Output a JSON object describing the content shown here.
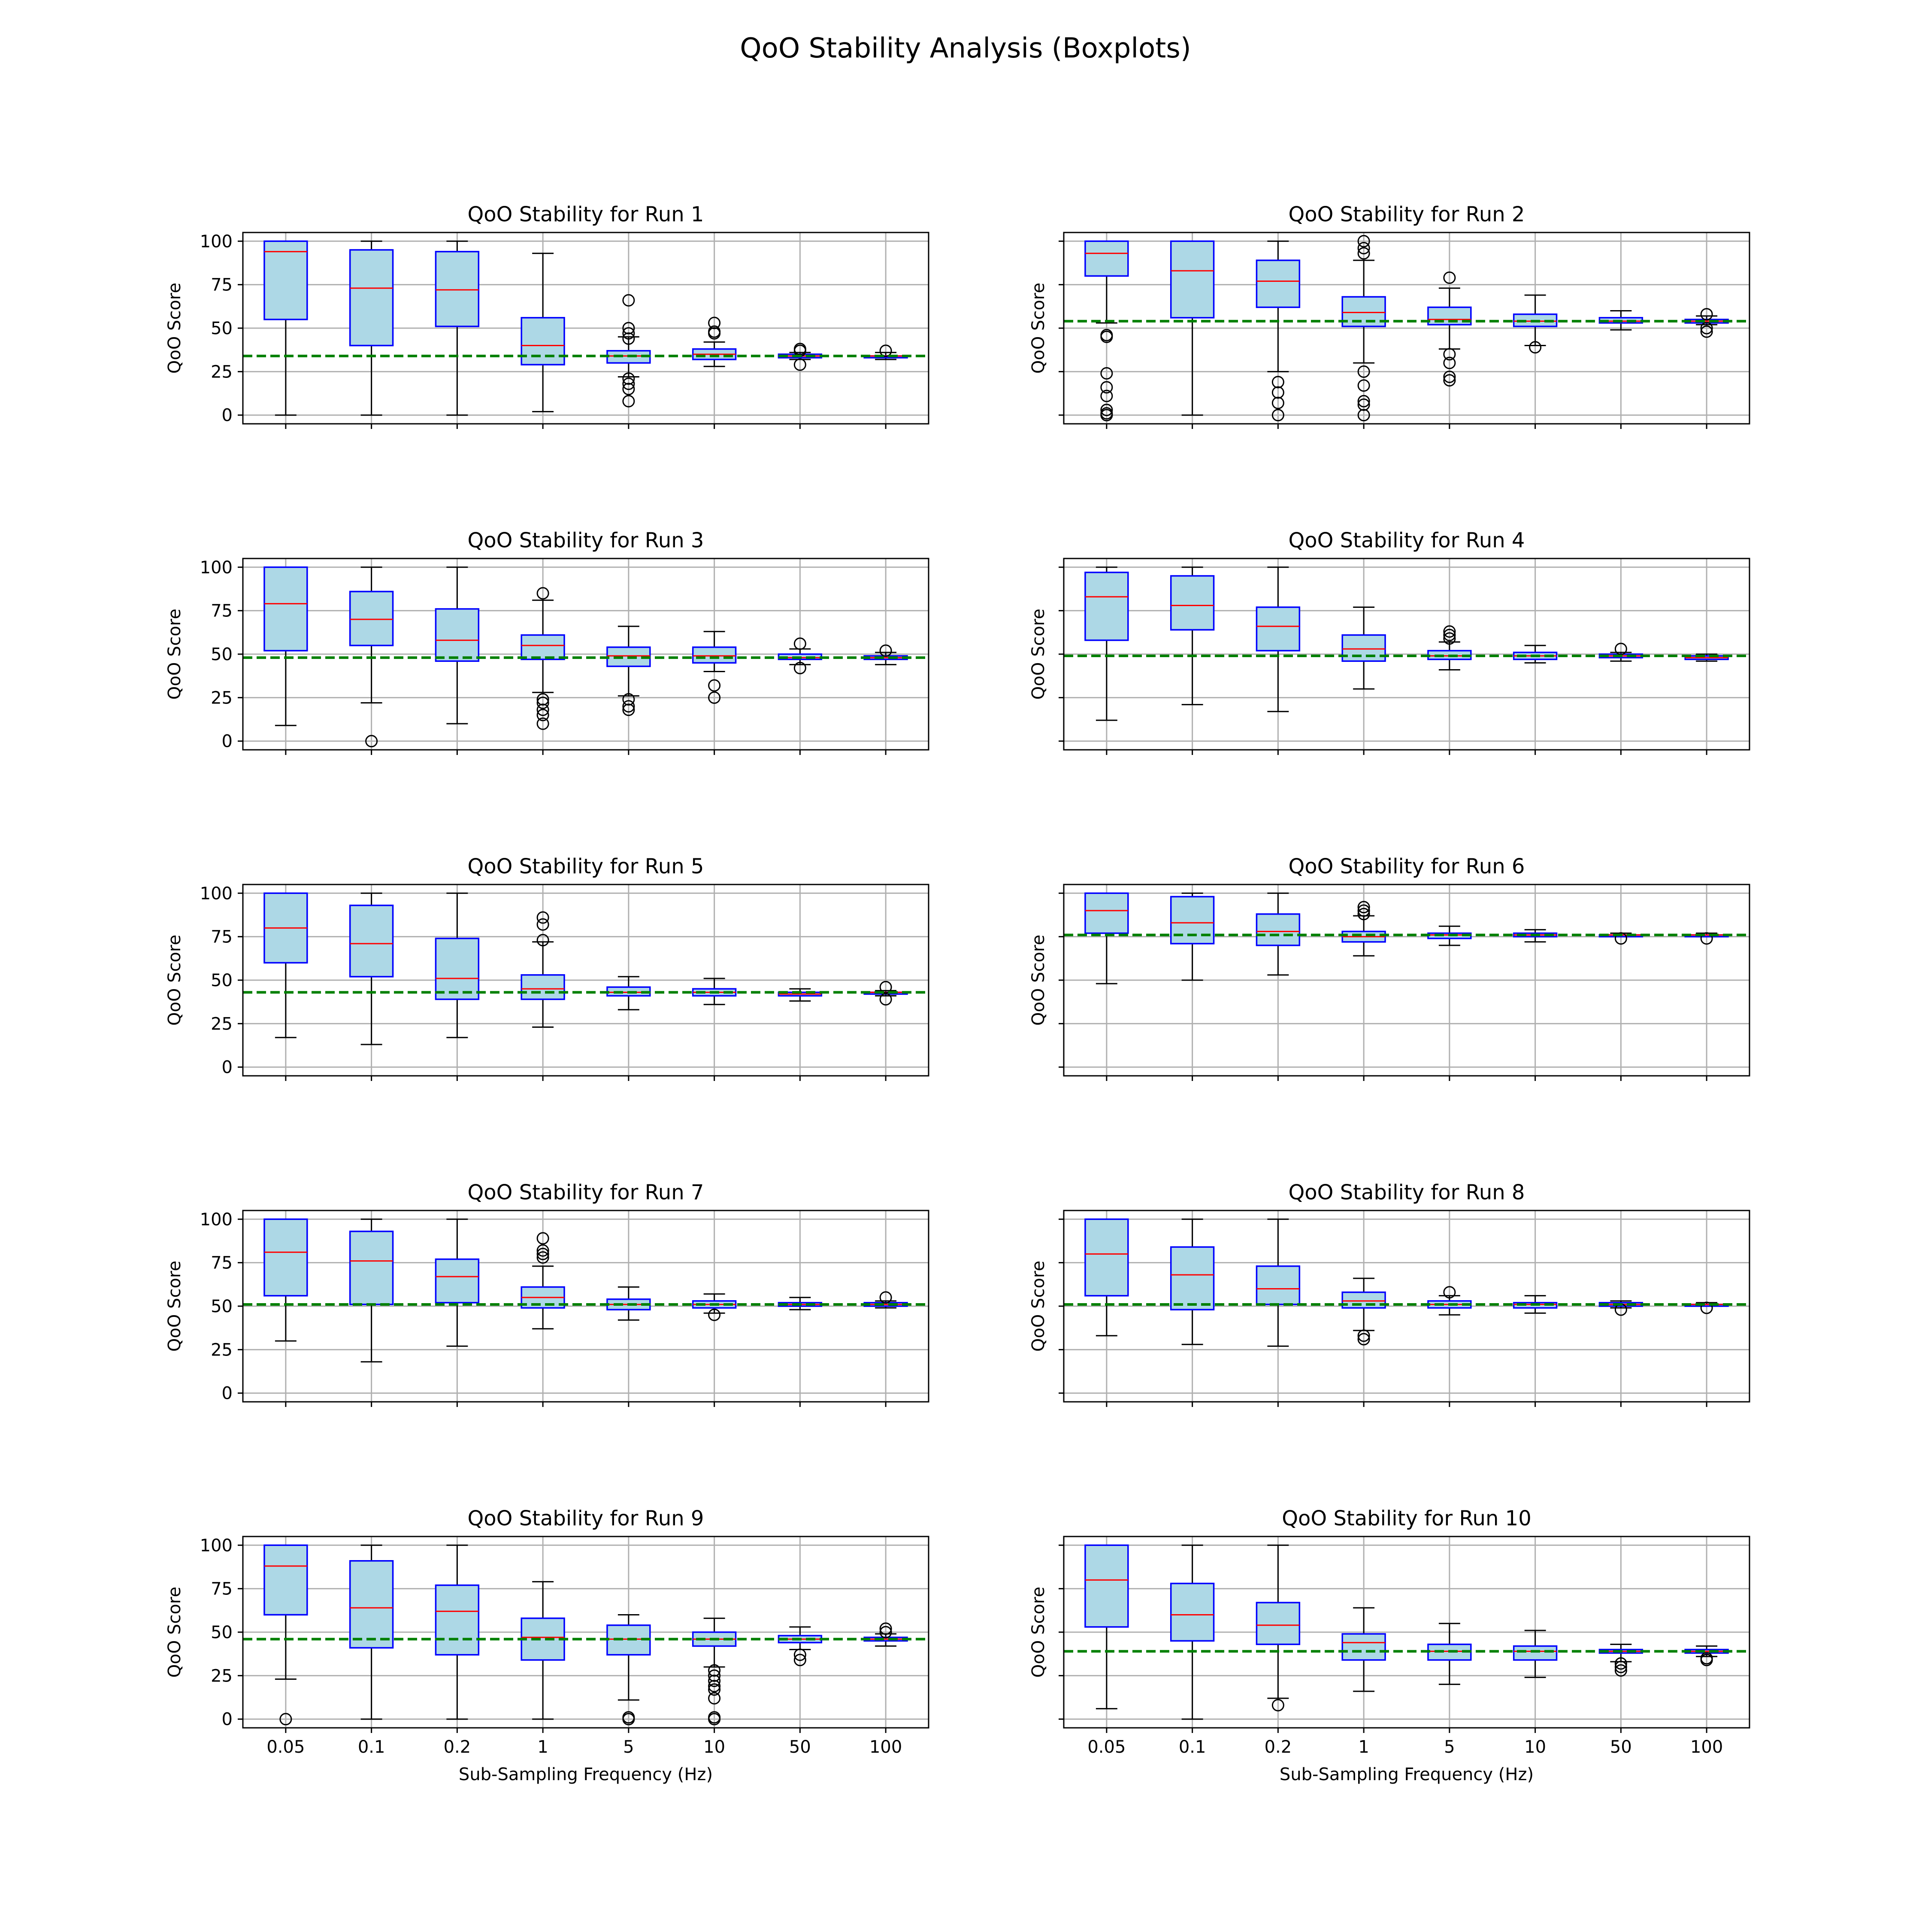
{
  "title": "QoO Stability Analysis (Boxplots)",
  "colors": {
    "box_fill": "#add8e6",
    "box_edge": "#0000ff",
    "median": "#ff0000",
    "whisker": "#000000",
    "flier": "#000000",
    "reference_line": "#008000",
    "grid": "#b0b0b0"
  },
  "chart_data": [
    {
      "type": "box",
      "title": "QoO Stability for Run 1",
      "xlabel": "",
      "ylabel": "QoO Score",
      "categories": [
        "0.05",
        "0.1",
        "0.2",
        "1",
        "5",
        "10",
        "50",
        "100"
      ],
      "ylim": [
        -5,
        105
      ],
      "yticks": [
        0,
        25,
        50,
        75,
        100
      ],
      "show_ytick_labels": true,
      "reference_line": 34,
      "grid": true,
      "boxes": [
        {
          "whislo": 0,
          "q1": 55,
          "med": 94,
          "q3": 100,
          "whishi": 100,
          "fliers": []
        },
        {
          "whislo": 0,
          "q1": 40,
          "med": 73,
          "q3": 95,
          "whishi": 100,
          "fliers": []
        },
        {
          "whislo": 0,
          "q1": 51,
          "med": 72,
          "q3": 94,
          "whishi": 100,
          "fliers": []
        },
        {
          "whislo": 2,
          "q1": 29,
          "med": 40,
          "q3": 56,
          "whishi": 93,
          "fliers": []
        },
        {
          "whislo": 22,
          "q1": 30,
          "med": 34,
          "q3": 37,
          "whishi": 45,
          "fliers": [
            66,
            50,
            47,
            44,
            21,
            18,
            15,
            8
          ]
        },
        {
          "whislo": 28,
          "q1": 32,
          "med": 35,
          "q3": 38,
          "whishi": 42,
          "fliers": [
            53,
            48,
            47
          ]
        },
        {
          "whislo": 32,
          "q1": 33,
          "med": 34,
          "q3": 35,
          "whishi": 36,
          "fliers": [
            38,
            37,
            29
          ]
        },
        {
          "whislo": 32,
          "q1": 33,
          "med": 34,
          "q3": 34,
          "whishi": 36,
          "fliers": [
            37
          ]
        }
      ]
    },
    {
      "type": "box",
      "title": "QoO Stability for Run 2",
      "xlabel": "",
      "ylabel": "QoO Score",
      "categories": [
        "0.05",
        "0.1",
        "0.2",
        "1",
        "5",
        "10",
        "50",
        "100"
      ],
      "ylim": [
        -5,
        105
      ],
      "yticks": [
        0,
        25,
        50,
        75,
        100
      ],
      "show_ytick_labels": false,
      "reference_line": 54,
      "grid": true,
      "boxes": [
        {
          "whislo": 53,
          "q1": 80,
          "med": 93,
          "q3": 100,
          "whishi": 100,
          "fliers": [
            46,
            45,
            24,
            16,
            11,
            3,
            1,
            0
          ]
        },
        {
          "whislo": 0,
          "q1": 56,
          "med": 83,
          "q3": 100,
          "whishi": 100,
          "fliers": []
        },
        {
          "whislo": 25,
          "q1": 62,
          "med": 77,
          "q3": 89,
          "whishi": 100,
          "fliers": [
            19,
            13,
            7,
            0
          ]
        },
        {
          "whislo": 30,
          "q1": 51,
          "med": 59,
          "q3": 68,
          "whishi": 89,
          "fliers": [
            100,
            96,
            93,
            25,
            17,
            8,
            6,
            0
          ]
        },
        {
          "whislo": 38,
          "q1": 52,
          "med": 55,
          "q3": 62,
          "whishi": 73,
          "fliers": [
            79,
            35,
            30,
            22,
            20
          ]
        },
        {
          "whislo": 40,
          "q1": 51,
          "med": 54,
          "q3": 58,
          "whishi": 69,
          "fliers": [
            39
          ]
        },
        {
          "whislo": 49,
          "q1": 53,
          "med": 54,
          "q3": 56,
          "whishi": 60,
          "fliers": []
        },
        {
          "whislo": 52,
          "q1": 53,
          "med": 54,
          "q3": 55,
          "whishi": 57,
          "fliers": [
            58,
            50,
            48
          ]
        }
      ]
    },
    {
      "type": "box",
      "title": "QoO Stability for Run 3",
      "xlabel": "",
      "ylabel": "QoO Score",
      "categories": [
        "0.05",
        "0.1",
        "0.2",
        "1",
        "5",
        "10",
        "50",
        "100"
      ],
      "ylim": [
        -5,
        105
      ],
      "yticks": [
        0,
        25,
        50,
        75,
        100
      ],
      "show_ytick_labels": true,
      "reference_line": 48,
      "grid": true,
      "boxes": [
        {
          "whislo": 9,
          "q1": 52,
          "med": 79,
          "q3": 100,
          "whishi": 100,
          "fliers": []
        },
        {
          "whislo": 22,
          "q1": 55,
          "med": 70,
          "q3": 86,
          "whishi": 100,
          "fliers": [
            0
          ]
        },
        {
          "whislo": 10,
          "q1": 46,
          "med": 58,
          "q3": 76,
          "whishi": 100,
          "fliers": []
        },
        {
          "whislo": 28,
          "q1": 47,
          "med": 55,
          "q3": 61,
          "whishi": 81,
          "fliers": [
            85,
            24,
            22,
            18,
            15,
            10
          ]
        },
        {
          "whislo": 26,
          "q1": 43,
          "med": 49,
          "q3": 54,
          "whishi": 66,
          "fliers": [
            24,
            20,
            18
          ]
        },
        {
          "whislo": 40,
          "q1": 45,
          "med": 49,
          "q3": 54,
          "whishi": 63,
          "fliers": [
            32,
            25
          ]
        },
        {
          "whislo": 44,
          "q1": 47,
          "med": 48,
          "q3": 50,
          "whishi": 53,
          "fliers": [
            56,
            42
          ]
        },
        {
          "whislo": 44,
          "q1": 47,
          "med": 48,
          "q3": 49,
          "whishi": 51,
          "fliers": [
            52
          ]
        }
      ]
    },
    {
      "type": "box",
      "title": "QoO Stability for Run 4",
      "xlabel": "",
      "ylabel": "QoO Score",
      "categories": [
        "0.05",
        "0.1",
        "0.2",
        "1",
        "5",
        "10",
        "50",
        "100"
      ],
      "ylim": [
        -5,
        105
      ],
      "yticks": [
        0,
        25,
        50,
        75,
        100
      ],
      "show_ytick_labels": false,
      "reference_line": 49,
      "grid": true,
      "boxes": [
        {
          "whislo": 12,
          "q1": 58,
          "med": 83,
          "q3": 97,
          "whishi": 100,
          "fliers": []
        },
        {
          "whislo": 21,
          "q1": 64,
          "med": 78,
          "q3": 95,
          "whishi": 100,
          "fliers": []
        },
        {
          "whislo": 17,
          "q1": 52,
          "med": 66,
          "q3": 77,
          "whishi": 100,
          "fliers": []
        },
        {
          "whislo": 30,
          "q1": 46,
          "med": 53,
          "q3": 61,
          "whishi": 77,
          "fliers": []
        },
        {
          "whislo": 41,
          "q1": 47,
          "med": 49,
          "q3": 52,
          "whishi": 57,
          "fliers": [
            63,
            61,
            59
          ]
        },
        {
          "whislo": 45,
          "q1": 47,
          "med": 49,
          "q3": 51,
          "whishi": 55,
          "fliers": []
        },
        {
          "whislo": 46,
          "q1": 48,
          "med": 49,
          "q3": 50,
          "whishi": 51,
          "fliers": [
            53
          ]
        },
        {
          "whislo": 46,
          "q1": 47,
          "med": 48,
          "q3": 49,
          "whishi": 50,
          "fliers": []
        }
      ]
    },
    {
      "type": "box",
      "title": "QoO Stability for Run 5",
      "xlabel": "",
      "ylabel": "QoO Score",
      "categories": [
        "0.05",
        "0.1",
        "0.2",
        "1",
        "5",
        "10",
        "50",
        "100"
      ],
      "ylim": [
        -5,
        105
      ],
      "yticks": [
        0,
        25,
        50,
        75,
        100
      ],
      "show_ytick_labels": true,
      "reference_line": 43,
      "grid": true,
      "boxes": [
        {
          "whislo": 17,
          "q1": 60,
          "med": 80,
          "q3": 100,
          "whishi": 100,
          "fliers": []
        },
        {
          "whislo": 13,
          "q1": 52,
          "med": 71,
          "q3": 93,
          "whishi": 100,
          "fliers": []
        },
        {
          "whislo": 17,
          "q1": 39,
          "med": 51,
          "q3": 74,
          "whishi": 100,
          "fliers": []
        },
        {
          "whislo": 23,
          "q1": 39,
          "med": 45,
          "q3": 53,
          "whishi": 72,
          "fliers": [
            86,
            82,
            73
          ]
        },
        {
          "whislo": 33,
          "q1": 41,
          "med": 43,
          "q3": 46,
          "whishi": 52,
          "fliers": []
        },
        {
          "whislo": 36,
          "q1": 41,
          "med": 43,
          "q3": 45,
          "whishi": 51,
          "fliers": []
        },
        {
          "whislo": 38,
          "q1": 41,
          "med": 42,
          "q3": 43,
          "whishi": 45,
          "fliers": []
        },
        {
          "whislo": 41,
          "q1": 42,
          "med": 43,
          "q3": 43,
          "whishi": 44,
          "fliers": [
            46,
            39
          ]
        }
      ]
    },
    {
      "type": "box",
      "title": "QoO Stability for Run 6",
      "xlabel": "",
      "ylabel": "QoO Score",
      "categories": [
        "0.05",
        "0.1",
        "0.2",
        "1",
        "5",
        "10",
        "50",
        "100"
      ],
      "ylim": [
        -5,
        105
      ],
      "yticks": [
        0,
        25,
        50,
        75,
        100
      ],
      "show_ytick_labels": false,
      "reference_line": 76,
      "grid": true,
      "boxes": [
        {
          "whislo": 48,
          "q1": 77,
          "med": 90,
          "q3": 100,
          "whishi": 100,
          "fliers": []
        },
        {
          "whislo": 50,
          "q1": 71,
          "med": 83,
          "q3": 98,
          "whishi": 100,
          "fliers": []
        },
        {
          "whislo": 53,
          "q1": 70,
          "med": 78,
          "q3": 88,
          "whishi": 100,
          "fliers": []
        },
        {
          "whislo": 64,
          "q1": 72,
          "med": 75,
          "q3": 78,
          "whishi": 87,
          "fliers": [
            92,
            90,
            88
          ]
        },
        {
          "whislo": 70,
          "q1": 74,
          "med": 76,
          "q3": 77,
          "whishi": 81,
          "fliers": []
        },
        {
          "whislo": 72,
          "q1": 75,
          "med": 76,
          "q3": 77,
          "whishi": 79,
          "fliers": []
        },
        {
          "whislo": 75,
          "q1": 75,
          "med": 76,
          "q3": 76,
          "whishi": 77,
          "fliers": [
            74
          ]
        },
        {
          "whislo": 75,
          "q1": 75,
          "med": 76,
          "q3": 76,
          "whishi": 77,
          "fliers": [
            74
          ]
        }
      ]
    },
    {
      "type": "box",
      "title": "QoO Stability for Run 7",
      "xlabel": "",
      "ylabel": "QoO Score",
      "categories": [
        "0.05",
        "0.1",
        "0.2",
        "1",
        "5",
        "10",
        "50",
        "100"
      ],
      "ylim": [
        -5,
        105
      ],
      "yticks": [
        0,
        25,
        50,
        75,
        100
      ],
      "show_ytick_labels": true,
      "reference_line": 51,
      "grid": true,
      "boxes": [
        {
          "whislo": 30,
          "q1": 56,
          "med": 81,
          "q3": 100,
          "whishi": 100,
          "fliers": []
        },
        {
          "whislo": 18,
          "q1": 51,
          "med": 76,
          "q3": 93,
          "whishi": 100,
          "fliers": []
        },
        {
          "whislo": 27,
          "q1": 52,
          "med": 67,
          "q3": 77,
          "whishi": 100,
          "fliers": []
        },
        {
          "whislo": 37,
          "q1": 49,
          "med": 55,
          "q3": 61,
          "whishi": 73,
          "fliers": [
            89,
            82,
            80,
            78
          ]
        },
        {
          "whislo": 42,
          "q1": 48,
          "med": 51,
          "q3": 54,
          "whishi": 61,
          "fliers": []
        },
        {
          "whislo": 46,
          "q1": 49,
          "med": 51,
          "q3": 53,
          "whishi": 57,
          "fliers": [
            45
          ]
        },
        {
          "whislo": 48,
          "q1": 50,
          "med": 51,
          "q3": 52,
          "whishi": 55,
          "fliers": []
        },
        {
          "whislo": 49,
          "q1": 50,
          "med": 51,
          "q3": 52,
          "whishi": 53,
          "fliers": [
            55
          ]
        }
      ]
    },
    {
      "type": "box",
      "title": "QoO Stability for Run 8",
      "xlabel": "",
      "ylabel": "QoO Score",
      "categories": [
        "0.05",
        "0.1",
        "0.2",
        "1",
        "5",
        "10",
        "50",
        "100"
      ],
      "ylim": [
        -5,
        105
      ],
      "yticks": [
        0,
        25,
        50,
        75,
        100
      ],
      "show_ytick_labels": false,
      "reference_line": 51,
      "grid": true,
      "boxes": [
        {
          "whislo": 33,
          "q1": 56,
          "med": 80,
          "q3": 100,
          "whishi": 100,
          "fliers": []
        },
        {
          "whislo": 28,
          "q1": 48,
          "med": 68,
          "q3": 84,
          "whishi": 100,
          "fliers": []
        },
        {
          "whislo": 27,
          "q1": 51,
          "med": 60,
          "q3": 73,
          "whishi": 100,
          "fliers": []
        },
        {
          "whislo": 36,
          "q1": 49,
          "med": 53,
          "q3": 58,
          "whishi": 66,
          "fliers": [
            33,
            31
          ]
        },
        {
          "whislo": 45,
          "q1": 49,
          "med": 51,
          "q3": 53,
          "whishi": 56,
          "fliers": [
            58
          ]
        },
        {
          "whislo": 46,
          "q1": 49,
          "med": 51,
          "q3": 52,
          "whishi": 56,
          "fliers": []
        },
        {
          "whislo": 49,
          "q1": 50,
          "med": 51,
          "q3": 52,
          "whishi": 53,
          "fliers": [
            48
          ]
        },
        {
          "whislo": 50,
          "q1": 50,
          "med": 51,
          "q3": 51,
          "whishi": 52,
          "fliers": [
            49
          ]
        }
      ]
    },
    {
      "type": "box",
      "title": "QoO Stability for Run 9",
      "xlabel": "Sub-Sampling Frequency (Hz)",
      "ylabel": "QoO Score",
      "categories": [
        "0.05",
        "0.1",
        "0.2",
        "1",
        "5",
        "10",
        "50",
        "100"
      ],
      "ylim": [
        -5,
        105
      ],
      "yticks": [
        0,
        25,
        50,
        75,
        100
      ],
      "show_ytick_labels": true,
      "reference_line": 46,
      "grid": true,
      "boxes": [
        {
          "whislo": 23,
          "q1": 60,
          "med": 88,
          "q3": 100,
          "whishi": 100,
          "fliers": [
            0
          ]
        },
        {
          "whislo": 0,
          "q1": 41,
          "med": 64,
          "q3": 91,
          "whishi": 100,
          "fliers": []
        },
        {
          "whislo": 0,
          "q1": 37,
          "med": 62,
          "q3": 77,
          "whishi": 100,
          "fliers": []
        },
        {
          "whislo": 0,
          "q1": 34,
          "med": 47,
          "q3": 58,
          "whishi": 79,
          "fliers": []
        },
        {
          "whislo": 11,
          "q1": 37,
          "med": 46,
          "q3": 54,
          "whishi": 60,
          "fliers": [
            1,
            0
          ]
        },
        {
          "whislo": 30,
          "q1": 42,
          "med": 46,
          "q3": 50,
          "whishi": 58,
          "fliers": [
            28,
            25,
            22,
            19,
            17,
            12,
            1,
            0
          ]
        },
        {
          "whislo": 40,
          "q1": 44,
          "med": 46,
          "q3": 48,
          "whishi": 53,
          "fliers": [
            37,
            34
          ]
        },
        {
          "whislo": 42,
          "q1": 45,
          "med": 46,
          "q3": 47,
          "whishi": 49,
          "fliers": [
            52,
            50
          ]
        }
      ]
    },
    {
      "type": "box",
      "title": "QoO Stability for Run 10",
      "xlabel": "Sub-Sampling Frequency (Hz)",
      "ylabel": "QoO Score",
      "categories": [
        "0.05",
        "0.1",
        "0.2",
        "1",
        "5",
        "10",
        "50",
        "100"
      ],
      "ylim": [
        -5,
        105
      ],
      "yticks": [
        0,
        25,
        50,
        75,
        100
      ],
      "show_ytick_labels": false,
      "reference_line": 39,
      "grid": true,
      "boxes": [
        {
          "whislo": 6,
          "q1": 53,
          "med": 80,
          "q3": 100,
          "whishi": 100,
          "fliers": []
        },
        {
          "whislo": 0,
          "q1": 45,
          "med": 60,
          "q3": 78,
          "whishi": 100,
          "fliers": []
        },
        {
          "whislo": 12,
          "q1": 43,
          "med": 54,
          "q3": 67,
          "whishi": 100,
          "fliers": [
            8
          ]
        },
        {
          "whislo": 16,
          "q1": 34,
          "med": 44,
          "q3": 49,
          "whishi": 64,
          "fliers": []
        },
        {
          "whislo": 20,
          "q1": 34,
          "med": 39,
          "q3": 43,
          "whishi": 55,
          "fliers": []
        },
        {
          "whislo": 24,
          "q1": 34,
          "med": 39,
          "q3": 42,
          "whishi": 51,
          "fliers": []
        },
        {
          "whislo": 33,
          "q1": 38,
          "med": 39,
          "q3": 40,
          "whishi": 43,
          "fliers": [
            32,
            30,
            28
          ]
        },
        {
          "whislo": 36,
          "q1": 38,
          "med": 39,
          "q3": 40,
          "whishi": 42,
          "fliers": [
            35,
            34
          ]
        }
      ]
    }
  ]
}
